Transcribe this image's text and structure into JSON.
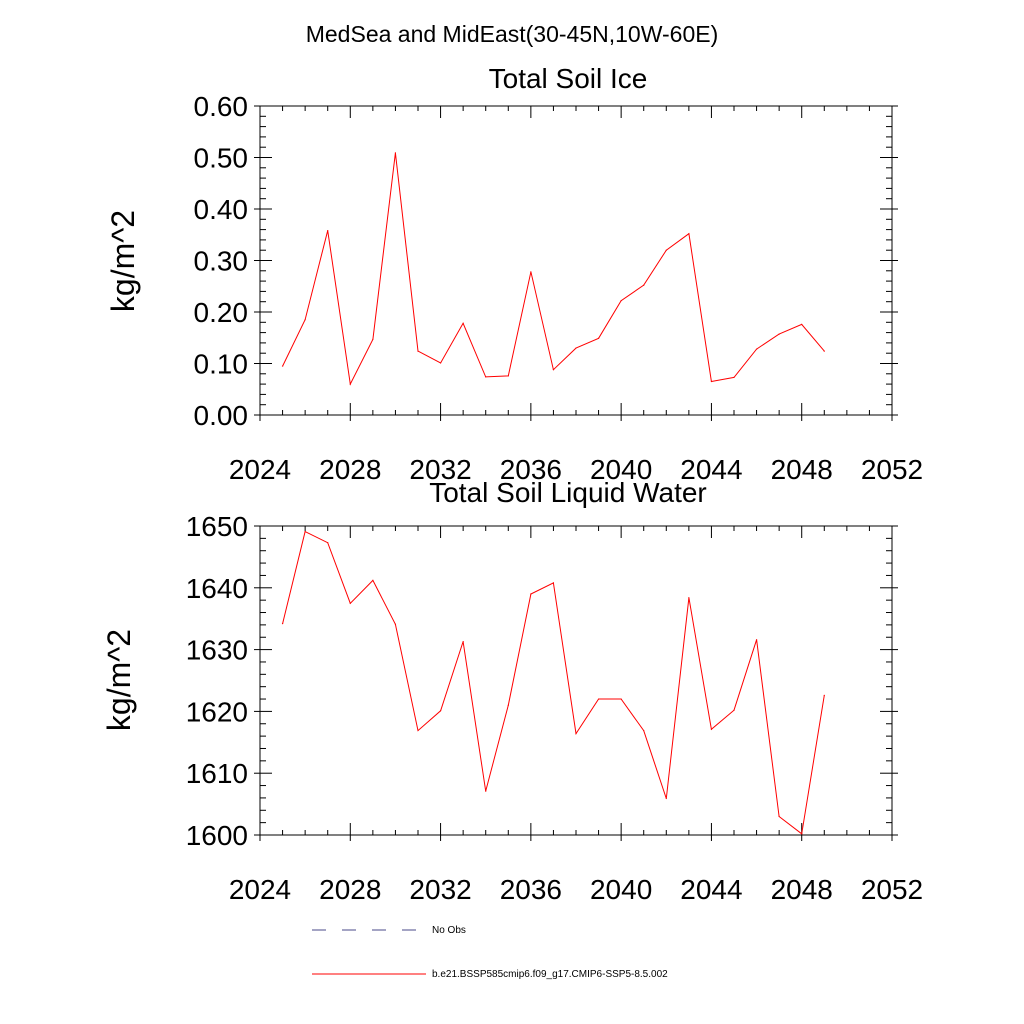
{
  "figure": {
    "suptitle": "MedSea and MidEast(30-45N,10W-60E)"
  },
  "chart_data": [
    {
      "type": "line",
      "title": "Total Soil Ice",
      "ylabel": "kg/m^2",
      "xlabel": "",
      "xlim": [
        2024,
        2052
      ],
      "ylim": [
        0.0,
        0.6
      ],
      "x_ticks": [
        2024,
        2028,
        2032,
        2036,
        2040,
        2044,
        2048,
        2052
      ],
      "y_ticks": [
        "0.00",
        "0.10",
        "0.20",
        "0.30",
        "0.40",
        "0.50",
        "0.60"
      ],
      "series": [
        {
          "name": "b.e21.BSSP585cmip6.f09_g17.CMIP6-SSP5-8.5.002",
          "color": "#ff0000",
          "x": [
            2025,
            2026,
            2027,
            2028,
            2029,
            2030,
            2031,
            2032,
            2033,
            2034,
            2035,
            2036,
            2037,
            2038,
            2039,
            2040,
            2041,
            2042,
            2043,
            2044,
            2045,
            2046,
            2047,
            2048,
            2049
          ],
          "y": [
            0.095,
            0.185,
            0.358,
            0.06,
            0.147,
            0.509,
            0.124,
            0.101,
            0.178,
            0.074,
            0.076,
            0.278,
            0.088,
            0.13,
            0.149,
            0.222,
            0.252,
            0.32,
            0.352,
            0.065,
            0.073,
            0.128,
            0.157,
            0.176,
            0.124
          ]
        }
      ]
    },
    {
      "type": "line",
      "title": "Total Soil Liquid Water",
      "ylabel": "kg/m^2",
      "xlabel": "",
      "xlim": [
        2024,
        2052
      ],
      "ylim": [
        1600,
        1650
      ],
      "x_ticks": [
        2024,
        2028,
        2032,
        2036,
        2040,
        2044,
        2048,
        2052
      ],
      "y_ticks": [
        "1600",
        "1610",
        "1620",
        "1630",
        "1640",
        "1650"
      ],
      "series": [
        {
          "name": "b.e21.BSSP585cmip6.f09_g17.CMIP6-SSP5-8.5.002",
          "color": "#ff0000",
          "x": [
            2025,
            2026,
            2027,
            2028,
            2029,
            2030,
            2031,
            2032,
            2033,
            2034,
            2035,
            2036,
            2037,
            2038,
            2039,
            2040,
            2041,
            2042,
            2043,
            2044,
            2045,
            2046,
            2047,
            2048,
            2049
          ],
          "y": [
            1634.2,
            1649.1,
            1647.3,
            1637.5,
            1641.2,
            1634.1,
            1616.9,
            1620.1,
            1631.3,
            1607.1,
            1621.0,
            1639.0,
            1640.8,
            1616.4,
            1622.0,
            1622.0,
            1616.9,
            1605.9,
            1638.4,
            1617.1,
            1620.2,
            1631.6,
            1603.0,
            1600.2,
            1622.6
          ]
        }
      ]
    }
  ],
  "legend": {
    "placement": "bottom",
    "entries": [
      {
        "label": "No Obs",
        "color": "#4a4a8a",
        "style": "dashed"
      },
      {
        "label": "b.e21.BSSP585cmip6.f09_g17.CMIP6-SSP5-8.5.002",
        "color": "#ff0000",
        "style": "solid"
      }
    ]
  }
}
